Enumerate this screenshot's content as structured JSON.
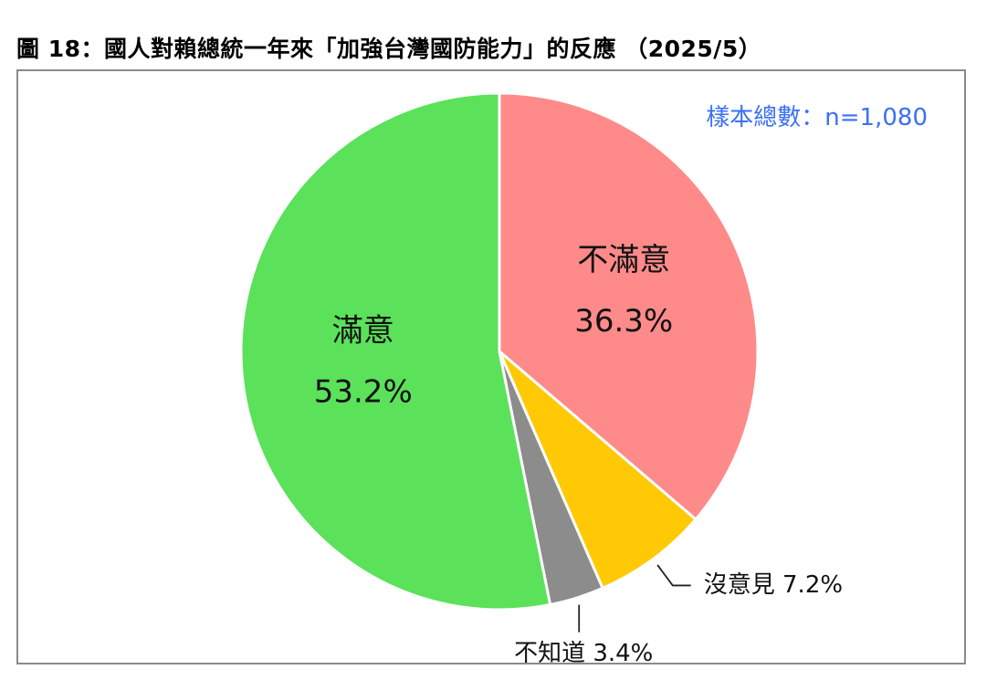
{
  "figure": {
    "title": "圖 18：國人對賴總統一年來「加強台灣國防能力」的反應 （2025/5）",
    "sample_note": "樣本總數：n=1,080"
  },
  "colors": {
    "satisfied": "#5be15a",
    "dissatisfied": "#ff8a8a",
    "no_opinion": "#ffc905",
    "dont_know": "#8c8c8c",
    "note": "#3b6ff6"
  },
  "chart_data": {
    "type": "pie",
    "start_angle_deg": 0,
    "direction": "clockwise",
    "labels_inside": true,
    "slices": [
      {
        "key": "dissatisfied",
        "label": "不滿意",
        "value": 36.3,
        "value_label": "36.3%",
        "color": "#ff8a8a"
      },
      {
        "key": "no_opinion",
        "label": "沒意見",
        "value": 7.2,
        "value_label": "7.2%",
        "color": "#ffc905"
      },
      {
        "key": "dont_know",
        "label": "不知道",
        "value": 3.4,
        "value_label": "3.4%",
        "color": "#8c8c8c"
      },
      {
        "key": "satisfied",
        "label": "滿意",
        "value": 53.2,
        "value_label": "53.2%",
        "color": "#5be15a"
      }
    ]
  }
}
